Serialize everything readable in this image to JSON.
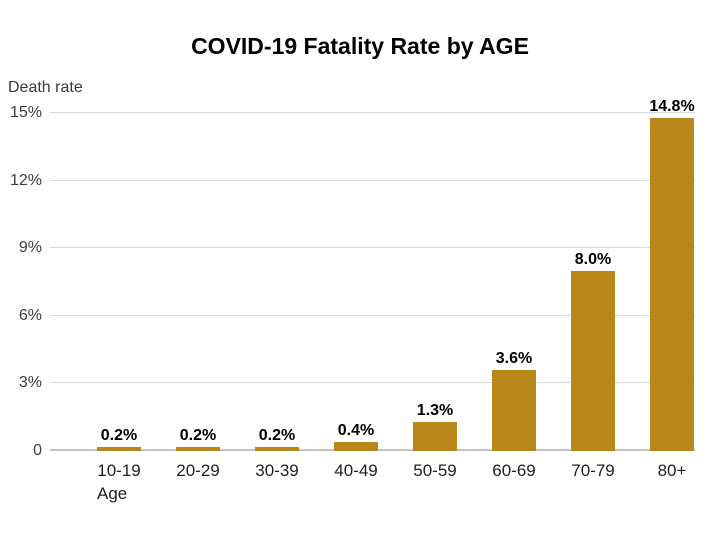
{
  "chart_data": {
    "type": "bar",
    "title": "COVID-19 Fatality Rate by AGE",
    "ylabel": "Death rate",
    "xlabel": "Age",
    "categories": [
      "10-19",
      "20-29",
      "30-39",
      "40-49",
      "50-59",
      "60-69",
      "70-79",
      "80+"
    ],
    "values": [
      0.2,
      0.2,
      0.2,
      0.4,
      1.3,
      3.6,
      8.0,
      14.8
    ],
    "value_labels": [
      "0.2%",
      "0.2%",
      "0.2%",
      "0.4%",
      "1.3%",
      "3.6%",
      "8.0%",
      "14.8%"
    ],
    "y_tick_values": [
      0,
      3,
      6,
      9,
      12,
      15
    ],
    "y_tick_labels": [
      "0",
      "3%",
      "6%",
      "9%",
      "12%",
      "15%"
    ],
    "ylim": [
      0,
      15
    ],
    "grid": true,
    "legend": null,
    "bar_color": "#B9861A"
  },
  "colors": {
    "background": "#FFFFFF",
    "bar": "#B9861A",
    "gridline": "#D9D9D9",
    "baseline": "#C3C3C3",
    "title_text": "#000000",
    "tick_text": "#3D3D3D",
    "category_text": "#1F1F1F",
    "value_label_text": "#000000"
  }
}
